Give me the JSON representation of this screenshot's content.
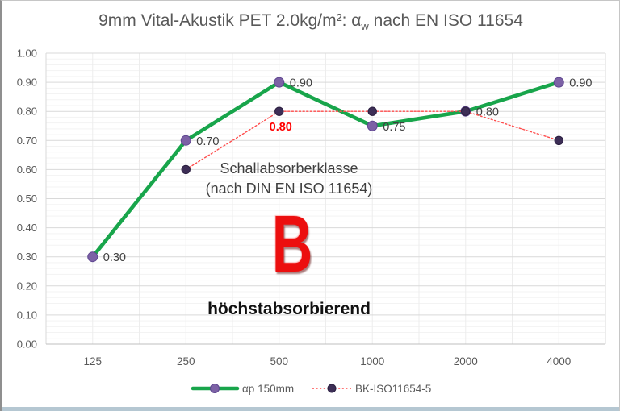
{
  "title": {
    "before_sub": "9mm Vital-Akustik PET 2.0kg/m²: α",
    "subscript": "w",
    "after_sub": " nach EN ISO 11654"
  },
  "chart_data": {
    "type": "line",
    "title": "9mm Vital-Akustik PET 2.0kg/m²: αw nach EN ISO 11654",
    "categories": [
      "125",
      "250",
      "500",
      "1000",
      "2000",
      "4000"
    ],
    "series": [
      {
        "name": "αp 150mm",
        "values": [
          0.3,
          0.7,
          0.9,
          0.75,
          0.8,
          0.9
        ],
        "data_labels": [
          "0.30",
          "0.70",
          "0.90",
          "0.75",
          "0.80",
          "0.90"
        ],
        "label_position": "right",
        "label_color": "#404040",
        "label_bold": false,
        "style": "solid",
        "line_color": "#18a54b",
        "line_width": 4.6,
        "marker_color": "#7c61a5",
        "marker_edge": "#5e4590",
        "marker_radius": 6
      },
      {
        "name": "BK-ISO11654-5",
        "values": [
          null,
          0.6,
          0.8,
          0.8,
          0.8,
          0.7
        ],
        "data_labels": [
          null,
          null,
          "0.80",
          null,
          null,
          null
        ],
        "label_position": "below",
        "label_color": "#ff0000",
        "label_bold": true,
        "style": "dotted",
        "line_color": "#ff4b4b",
        "line_width": 1.4,
        "marker_color": "#3d2e56",
        "marker_edge": "#2b1f40",
        "marker_radius": 5.2
      }
    ],
    "ylim": [
      0,
      1
    ],
    "ytick_step": 0.1,
    "ytick_labels": [
      "0.00",
      "0.10",
      "0.20",
      "0.30",
      "0.40",
      "0.50",
      "0.60",
      "0.70",
      "0.80",
      "0.90",
      "1.00"
    ],
    "yminor_step": 0.02,
    "xlabel": "",
    "ylabel": "",
    "grid": {
      "major_color": "#d9d9d9",
      "minor_color": "#f3f3f3",
      "axis_color": "#bfbfbf"
    },
    "legend_position": "bottom",
    "tick_color": "#595959"
  },
  "annotations": {
    "absorber_class_line1": "Schallabsorberklasse",
    "absorber_class_line2": "(nach DIN EN ISO 11654)",
    "class_letter": "B",
    "class_description": "höchstabsorbierend"
  }
}
